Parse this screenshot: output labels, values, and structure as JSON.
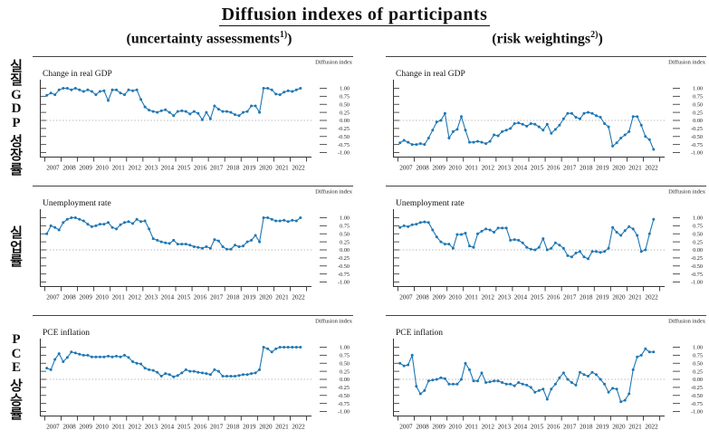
{
  "header": {
    "title": "Diffusion indexes of participants",
    "subtitle_left": {
      "text": "(uncertainty assessments",
      "sup": "1)",
      "close": ")"
    },
    "subtitle_right": {
      "text": "(risk weightings",
      "sup": "2)",
      "close": ")"
    }
  },
  "row_labels": [
    "실질GDP 성장률",
    "실업률",
    "PCE 상승률"
  ],
  "axes": {
    "y_unit_label": "Diffusion index",
    "y_ticks": [
      1,
      0.75,
      0.5,
      0.25,
      0,
      -0.25,
      -0.5,
      -0.75,
      -1
    ],
    "y_tick_labels": [
      "1.00",
      "0.75",
      "0.50",
      "0.25",
      "0.00",
      "-0.25",
      "-0.50",
      "-0.75",
      "-1.00"
    ],
    "ylim": [
      -1,
      1
    ],
    "x_year_labels": [
      "2007",
      "2008",
      "2009",
      "2010",
      "2011",
      "2012",
      "2013",
      "2014",
      "2015",
      "2016",
      "2017",
      "2018",
      "2019",
      "2020",
      "2021",
      "2022"
    ],
    "x_start": 2007,
    "x_step": 0.25,
    "grid": "zero-line-only",
    "legend": "none"
  },
  "style": {
    "line_color": "#1f77b4",
    "zero_line_color": "#b5b5b5",
    "axis_color": "#333333"
  },
  "chart_data": [
    {
      "type": "line",
      "column": "uncertainty assessments",
      "title": "Change in real GDP",
      "ylabel": "Diffusion index",
      "ylim": [
        -1,
        1
      ],
      "values": [
        0.78,
        0.85,
        0.8,
        0.95,
        1.0,
        1.0,
        0.95,
        1.0,
        0.95,
        0.9,
        0.95,
        0.9,
        0.8,
        0.9,
        0.92,
        0.62,
        0.95,
        0.95,
        0.85,
        0.8,
        0.95,
        0.92,
        0.95,
        0.65,
        0.42,
        0.32,
        0.28,
        0.25,
        0.3,
        0.33,
        0.25,
        0.15,
        0.28,
        0.3,
        0.28,
        0.2,
        0.28,
        0.22,
        0.02,
        0.25,
        0.05,
        0.45,
        0.35,
        0.28,
        0.28,
        0.25,
        0.18,
        0.15,
        0.25,
        0.28,
        0.45,
        0.45,
        0.25,
        1.0,
        1.0,
        0.95,
        0.82,
        0.8,
        0.88,
        0.92,
        0.9,
        0.95,
        1.0
      ]
    },
    {
      "type": "line",
      "column": "risk weightings",
      "title": "Change in real GDP",
      "ylabel": "Diffusion index",
      "ylim": [
        -1,
        1
      ],
      "values": [
        -0.7,
        -0.62,
        -0.68,
        -0.75,
        -0.75,
        -0.72,
        -0.75,
        -0.55,
        -0.3,
        -0.05,
        0.0,
        0.22,
        -0.55,
        -0.35,
        -0.28,
        0.12,
        -0.3,
        -0.68,
        -0.68,
        -0.65,
        -0.68,
        -0.72,
        -0.65,
        -0.45,
        -0.48,
        -0.35,
        -0.3,
        -0.25,
        -0.1,
        -0.08,
        -0.12,
        -0.18,
        -0.1,
        -0.12,
        -0.2,
        -0.3,
        -0.12,
        -0.4,
        -0.28,
        -0.15,
        0.05,
        0.22,
        0.22,
        0.1,
        0.05,
        0.22,
        0.25,
        0.22,
        0.15,
        0.1,
        -0.1,
        -0.2,
        -0.8,
        -0.7,
        -0.55,
        -0.45,
        -0.35,
        0.12,
        0.12,
        -0.15,
        -0.5,
        -0.6,
        -0.9
      ]
    },
    {
      "type": "line",
      "column": "uncertainty assessments",
      "title": "Unemployment rate",
      "ylabel": "Diffusion index",
      "ylim": [
        -1,
        1
      ],
      "values": [
        0.5,
        0.75,
        0.7,
        0.62,
        0.85,
        0.95,
        1.0,
        1.0,
        0.95,
        0.9,
        0.8,
        0.72,
        0.75,
        0.8,
        0.8,
        0.85,
        0.7,
        0.65,
        0.78,
        0.85,
        0.88,
        0.82,
        0.95,
        0.88,
        0.9,
        0.65,
        0.35,
        0.3,
        0.25,
        0.22,
        0.2,
        0.3,
        0.18,
        0.18,
        0.18,
        0.15,
        0.1,
        0.08,
        0.05,
        0.1,
        0.05,
        0.32,
        0.28,
        0.1,
        0.02,
        0.02,
        0.15,
        0.1,
        0.12,
        0.25,
        0.3,
        0.45,
        0.25,
        1.0,
        1.0,
        0.95,
        0.9,
        0.9,
        0.92,
        0.88,
        0.92,
        0.9,
        1.0
      ]
    },
    {
      "type": "line",
      "column": "risk weightings",
      "title": "Unemployment rate",
      "ylabel": "Diffusion index",
      "ylim": [
        -1,
        1
      ],
      "values": [
        0.7,
        0.75,
        0.72,
        0.78,
        0.8,
        0.85,
        0.87,
        0.85,
        0.62,
        0.4,
        0.25,
        0.18,
        0.18,
        0.05,
        0.48,
        0.48,
        0.52,
        0.12,
        0.08,
        0.5,
        0.58,
        0.65,
        0.62,
        0.55,
        0.68,
        0.68,
        0.68,
        0.3,
        0.32,
        0.3,
        0.22,
        0.08,
        0.02,
        0.0,
        0.08,
        0.35,
        0.0,
        0.05,
        0.22,
        0.15,
        0.05,
        -0.18,
        -0.22,
        -0.1,
        -0.05,
        -0.22,
        -0.28,
        -0.05,
        -0.05,
        -0.08,
        -0.05,
        0.05,
        0.7,
        0.55,
        0.45,
        0.6,
        0.72,
        0.65,
        0.45,
        -0.05,
        0.0,
        0.5,
        0.95
      ]
    },
    {
      "type": "line",
      "column": "uncertainty assessments",
      "title": "PCE inflation",
      "ylabel": "Diffusion index",
      "ylim": [
        -1,
        1
      ],
      "values": [
        0.35,
        0.3,
        0.62,
        0.8,
        0.55,
        0.68,
        0.85,
        0.82,
        0.78,
        0.75,
        0.75,
        0.7,
        0.7,
        0.7,
        0.7,
        0.72,
        0.7,
        0.72,
        0.7,
        0.75,
        0.68,
        0.55,
        0.5,
        0.48,
        0.35,
        0.3,
        0.28,
        0.22,
        0.1,
        0.18,
        0.15,
        0.08,
        0.12,
        0.2,
        0.3,
        0.25,
        0.25,
        0.22,
        0.2,
        0.18,
        0.15,
        0.3,
        0.25,
        0.1,
        0.1,
        0.1,
        0.1,
        0.12,
        0.15,
        0.15,
        0.18,
        0.2,
        0.3,
        1.0,
        0.95,
        0.85,
        0.95,
        1.0,
        1.0,
        1.0,
        1.0,
        1.0,
        1.0
      ]
    },
    {
      "type": "line",
      "column": "risk weightings",
      "title": "PCE inflation",
      "ylabel": "Diffusion index",
      "ylim": [
        -1,
        1
      ],
      "values": [
        0.5,
        0.42,
        0.45,
        0.75,
        -0.22,
        -0.45,
        -0.35,
        -0.05,
        -0.02,
        0.0,
        0.05,
        0.02,
        -0.15,
        -0.15,
        -0.15,
        0.0,
        0.5,
        0.3,
        -0.05,
        -0.05,
        0.2,
        -0.1,
        -0.08,
        -0.05,
        -0.05,
        -0.1,
        -0.15,
        -0.15,
        -0.2,
        -0.1,
        -0.15,
        -0.18,
        -0.25,
        -0.4,
        -0.35,
        -0.3,
        -0.62,
        -0.3,
        -0.15,
        0.05,
        0.2,
        0.0,
        -0.1,
        -0.18,
        0.22,
        0.15,
        0.1,
        0.22,
        0.15,
        0.0,
        -0.15,
        -0.4,
        -0.28,
        -0.3,
        -0.7,
        -0.65,
        -0.45,
        0.3,
        0.7,
        0.75,
        0.95,
        0.85,
        0.85
      ]
    }
  ]
}
